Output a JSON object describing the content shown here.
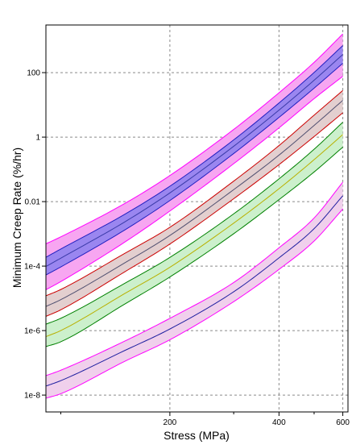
{
  "chart_data": {
    "type": "line",
    "xlabel": "Stress (MPa)",
    "ylabel": "Minimum Creep Rate (%/hr)",
    "x_scale": "log",
    "y_scale": "log",
    "xlim": [
      91,
      620
    ],
    "ylim": [
      3e-09,
      3000
    ],
    "grid": true,
    "x_ticks": [
      {
        "value": 200,
        "label": "200"
      },
      {
        "value": 400,
        "label": "400"
      },
      {
        "value": 600,
        "label": "600"
      }
    ],
    "x_minor_ticks": [
      100,
      300,
      500
    ],
    "y_ticks": [
      {
        "value": 1e-08,
        "label": "1e-8"
      },
      {
        "value": 1e-06,
        "label": "1e-6"
      },
      {
        "value": 0.0001,
        "label": "1e-4"
      },
      {
        "value": 0.01,
        "label": "0.01"
      },
      {
        "value": 1,
        "label": "1"
      },
      {
        "value": 100,
        "label": "100"
      }
    ],
    "series": [
      {
        "color": "#3a3aa8",
        "outer_band_color": "#ff00ff",
        "outer_band_fill": "#f7a6f1",
        "inner_band_color": "#2020c0",
        "inner_band_fill": "#9a86f0",
        "x": [
          91,
          100,
          150,
          200,
          300,
          400,
          500,
          600
        ],
        "median": [
          9.7e-05,
          0.000176,
          0.00233,
          0.0186,
          0.52,
          6.87,
          58,
          366
        ],
        "inner_lower": [
          5.3e-05,
          9.4e-05,
          0.00131,
          0.0108,
          0.31,
          4.08,
          33,
          195
        ],
        "inner_upper": [
          0.000188,
          0.000338,
          0.00402,
          0.03,
          0.82,
          11.4,
          101,
          693
        ],
        "outer_lower": [
          1.85e-05,
          3.3e-05,
          0.00055,
          0.0051,
          0.15,
          1.93,
          15.6,
          77
        ],
        "outer_upper": [
          0.00049,
          0.000806,
          0.00869,
          0.0643,
          1.73,
          23.7,
          208,
          1580
        ]
      },
      {
        "color": "#505070",
        "band_color": "#cc0000",
        "band_fill": "#e3cfcf",
        "x": [
          91,
          100,
          150,
          200,
          300,
          400,
          500,
          600
        ],
        "median": [
          5.6e-06,
          9.1e-06,
          0.000125,
          0.000892,
          0.0235,
          0.276,
          2.3,
          13.8
        ],
        "lower": [
          2.76e-06,
          4.4e-06,
          6.6e-05,
          0.000483,
          0.0123,
          0.14,
          1.04,
          5.7
        ],
        "upper": [
          1.2e-05,
          1.88e-05,
          0.000246,
          0.0016,
          0.0432,
          0.547,
          4.8,
          27.9
        ]
      },
      {
        "color": "#b8b000",
        "band_color": "#008000",
        "band_fill": "#ccf0cc",
        "x": [
          91,
          100,
          150,
          200,
          300,
          400,
          500,
          600
        ],
        "median": [
          6.5e-07,
          1e-06,
          1.4e-05,
          9.2e-05,
          0.00215,
          0.0251,
          0.2,
          1.2
        ],
        "lower": [
          3.2e-07,
          4.5e-07,
          6.6e-06,
          4.6e-05,
          0.00101,
          0.0115,
          0.083,
          0.49
        ],
        "upper": [
          1.58e-06,
          2.4e-06,
          2.9e-05,
          0.000186,
          0.00417,
          0.0508,
          0.42,
          2.9
        ]
      },
      {
        "color": "#2020a0",
        "band_color": "#ff00ff",
        "band_fill": "#f0d0ec",
        "x": [
          91,
          100,
          150,
          200,
          300,
          400,
          500,
          600
        ],
        "median": [
          1.9e-08,
          2.8e-08,
          2.4e-07,
          1.12e-06,
          1.6e-05,
          0.00018,
          0.00145,
          0.0152
        ],
        "lower": [
          8e-09,
          1.1e-08,
          1.11e-07,
          5.2e-07,
          7.9e-06,
          7.9e-05,
          0.0006,
          0.0059
        ],
        "upper": [
          4e-08,
          5.9e-08,
          4.7e-07,
          2.4e-06,
          3.1e-05,
          0.00037,
          0.0031,
          0.04
        ]
      }
    ]
  }
}
